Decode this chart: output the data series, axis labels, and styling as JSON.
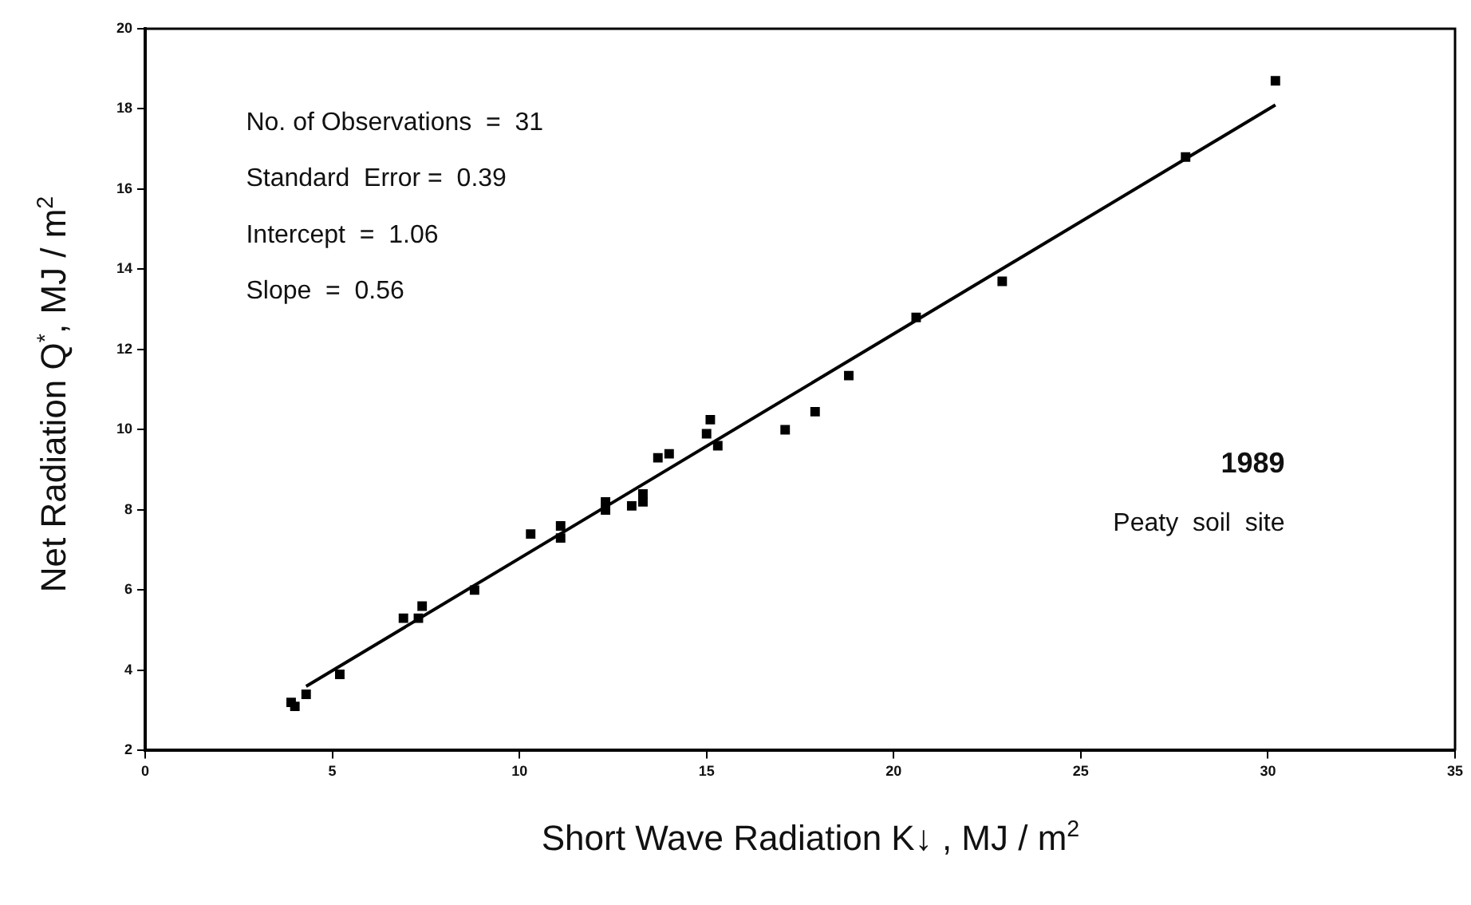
{
  "chart_data": {
    "type": "scatter",
    "xlabel": "Short Wave Radiation K↓ ,   MJ / m$^{2}$",
    "ylabel": "Net Radiation  Q$^{*}$,     MJ / m$^{2}$",
    "annotations": [
      "No. of Observations  =  31",
      "Standard  Error =  0.39",
      "Intercept  =  1.06",
      "Slope  =  0.56",
      "1989",
      "Peaty  soil  site"
    ],
    "xlim": [
      0,
      35
    ],
    "xticks": [
      0,
      5,
      10,
      15,
      20,
      25,
      30,
      35
    ],
    "ylim": [
      2,
      20
    ],
    "yticks": [
      2,
      4,
      6,
      8,
      10,
      12,
      14,
      16,
      18,
      20
    ],
    "grid": false,
    "legend": false,
    "marker": "square",
    "series": [
      {
        "type": "scatter",
        "color": "#000000",
        "x": [
          3.9,
          4.0,
          4.3,
          5.2,
          6.9,
          7.3,
          7.4,
          8.8,
          10.3,
          11.1,
          11.1,
          12.3,
          12.3,
          13.0,
          13.3,
          13.3,
          13.7,
          14.0,
          15.0,
          15.1,
          15.3,
          17.1,
          17.9,
          18.8,
          20.6,
          22.9,
          27.8,
          30.2
        ],
        "values": [
          3.2,
          3.1,
          3.4,
          3.9,
          5.3,
          5.3,
          5.6,
          6.0,
          7.4,
          7.6,
          7.3,
          8.2,
          8.0,
          8.1,
          8.2,
          8.4,
          9.3,
          9.4,
          9.9,
          10.25,
          9.6,
          10.0,
          10.45,
          11.35,
          12.8,
          13.7,
          16.8,
          18.7
        ]
      },
      {
        "type": "line",
        "color": "#000000",
        "line_style": "solid",
        "marker": "none",
        "x": [
          4.3,
          30.2
        ],
        "values": [
          3.6,
          18.1
        ]
      }
    ]
  }
}
